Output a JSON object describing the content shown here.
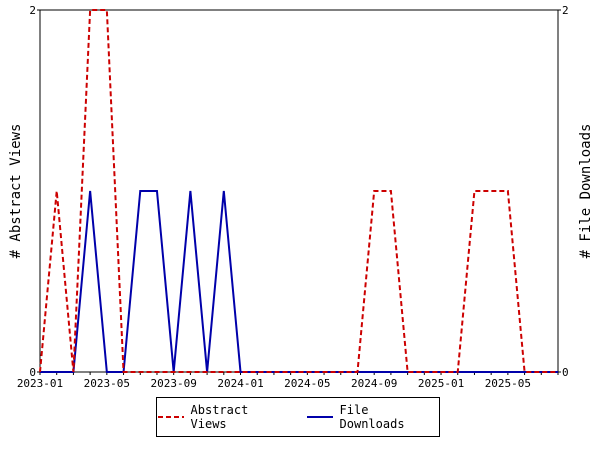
{
  "chart_data": {
    "type": "line",
    "x": [
      "2023-01",
      "2023-02",
      "2023-03",
      "2023-04",
      "2023-05",
      "2023-06",
      "2023-07",
      "2023-08",
      "2023-09",
      "2023-10",
      "2023-11",
      "2023-12",
      "2024-01",
      "2024-02",
      "2024-03",
      "2024-04",
      "2024-05",
      "2024-06",
      "2024-07",
      "2024-08",
      "2024-09",
      "2024-10",
      "2024-11",
      "2024-12",
      "2025-01",
      "2025-02",
      "2025-03",
      "2025-04",
      "2025-05",
      "2025-06",
      "2025-07",
      "2025-08"
    ],
    "series": [
      {
        "name": "Abstract Views",
        "color": "#cc0000",
        "dash": true,
        "values": [
          0,
          1,
          0,
          2,
          2,
          0,
          0,
          0,
          0,
          0,
          0,
          0,
          0,
          0,
          0,
          0,
          0,
          0,
          0,
          0,
          1,
          1,
          0,
          0,
          0,
          0,
          1,
          1,
          1,
          0,
          0,
          0
        ]
      },
      {
        "name": "File Downloads",
        "color": "#0000aa",
        "dash": false,
        "values": [
          0,
          0,
          0,
          1,
          0,
          0,
          1,
          1,
          0,
          1,
          0,
          1,
          0,
          0,
          0,
          0,
          0,
          0,
          0,
          0,
          0,
          0,
          0,
          0,
          0,
          0,
          0,
          0,
          0,
          0,
          0,
          0
        ]
      }
    ],
    "x_tick_labels": [
      "2023-01",
      "2023-05",
      "2023-09",
      "2024-01",
      "2024-05",
      "2024-09",
      "2025-01",
      "2025-05"
    ],
    "ylabel_left": "# Abstract Views",
    "ylabel_right": "# File Downloads",
    "y_left_ticks": [
      "0",
      "2"
    ],
    "y_right_ticks": [
      "0",
      "2"
    ],
    "ylim": [
      0,
      2
    ],
    "grid": false,
    "legend_position": "bottom"
  }
}
